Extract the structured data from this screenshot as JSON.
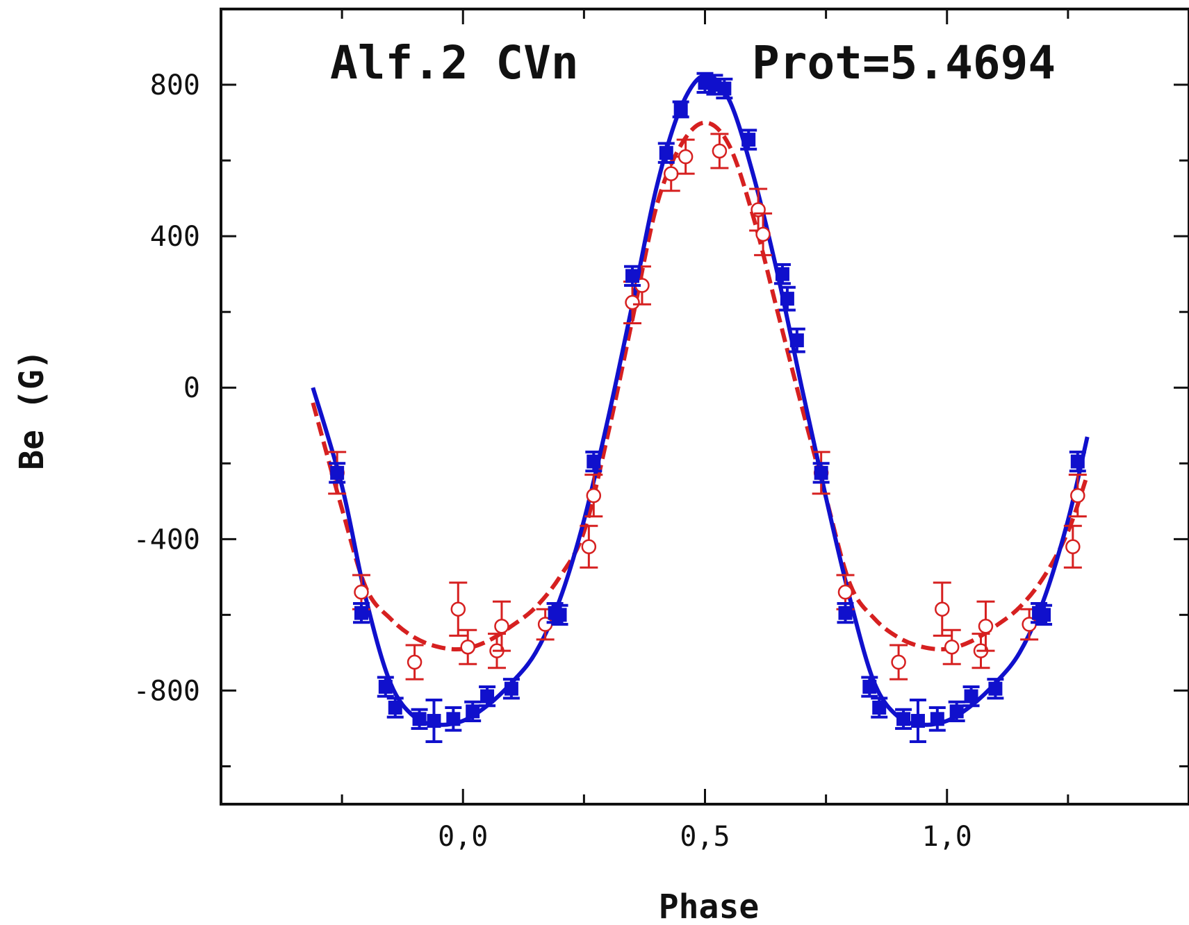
{
  "chart_data": {
    "type": "scatter",
    "title": "",
    "annotations": [
      "Alf.2 CVn",
      "Prot=5.4694"
    ],
    "xlabel": "Phase",
    "ylabel": "Be (G)",
    "xlim": [
      -0.5,
      1.5
    ],
    "ylim": [
      -1100,
      1000
    ],
    "x_ticks": [
      "0,0",
      "0,5",
      "1,0"
    ],
    "x_tick_values": [
      0.0,
      0.5,
      1.0
    ],
    "y_ticks": [
      "800",
      "400",
      "0",
      "-400",
      "-800"
    ],
    "y_tick_values": [
      800,
      400,
      0,
      -400,
      -800
    ],
    "grid": false,
    "colors": {
      "blue": "#1010cc",
      "red": "#d62020",
      "axis": "#111111"
    },
    "series": [
      {
        "style": "filled squares with error bars, solid fit line",
        "color": "#1010cc",
        "points": [
          {
            "x": -0.26,
            "y": -225,
            "err": 25
          },
          {
            "x": -0.21,
            "y": -595,
            "err": 25
          },
          {
            "x": -0.16,
            "y": -790,
            "err": 25
          },
          {
            "x": -0.14,
            "y": -845,
            "err": 25
          },
          {
            "x": -0.09,
            "y": -875,
            "err": 25
          },
          {
            "x": -0.06,
            "y": -880,
            "err": 55
          },
          {
            "x": -0.02,
            "y": -875,
            "err": 30
          },
          {
            "x": 0.02,
            "y": -855,
            "err": 25
          },
          {
            "x": 0.05,
            "y": -815,
            "err": 25
          },
          {
            "x": 0.1,
            "y": -795,
            "err": 25
          },
          {
            "x": 0.19,
            "y": -595,
            "err": 25
          },
          {
            "x": 0.2,
            "y": -600,
            "err": 25
          },
          {
            "x": 0.27,
            "y": -195,
            "err": 25
          },
          {
            "x": 0.35,
            "y": 295,
            "err": 25
          },
          {
            "x": 0.42,
            "y": 620,
            "err": 25
          },
          {
            "x": 0.45,
            "y": 735,
            "err": 20
          },
          {
            "x": 0.5,
            "y": 805,
            "err": 25
          },
          {
            "x": 0.52,
            "y": 800,
            "err": 25
          },
          {
            "x": 0.54,
            "y": 790,
            "err": 25
          },
          {
            "x": 0.59,
            "y": 655,
            "err": 25
          },
          {
            "x": 0.66,
            "y": 300,
            "err": 25
          },
          {
            "x": 0.67,
            "y": 235,
            "err": 30
          },
          {
            "x": 0.69,
            "y": 125,
            "err": 30
          },
          {
            "x": 0.74,
            "y": -225,
            "err": 25
          },
          {
            "x": 0.79,
            "y": -595,
            "err": 25
          },
          {
            "x": 0.84,
            "y": -790,
            "err": 25
          },
          {
            "x": 0.86,
            "y": -845,
            "err": 25
          },
          {
            "x": 0.91,
            "y": -875,
            "err": 25
          },
          {
            "x": 0.94,
            "y": -880,
            "err": 55
          },
          {
            "x": 0.98,
            "y": -875,
            "err": 30
          },
          {
            "x": 1.02,
            "y": -855,
            "err": 25
          },
          {
            "x": 1.05,
            "y": -815,
            "err": 25
          },
          {
            "x": 1.1,
            "y": -795,
            "err": 25
          },
          {
            "x": 1.19,
            "y": -595,
            "err": 25
          },
          {
            "x": 1.2,
            "y": -600,
            "err": 25
          },
          {
            "x": 1.27,
            "y": -195,
            "err": 25
          }
        ],
        "fit": {
          "x": [
            -0.31,
            -0.25,
            -0.2,
            -0.15,
            -0.1,
            -0.05,
            0.0,
            0.05,
            0.1,
            0.15,
            0.2,
            0.25,
            0.3,
            0.35,
            0.4,
            0.45,
            0.5,
            0.55,
            0.6,
            0.65,
            0.7,
            0.75,
            0.8,
            0.85,
            0.9,
            0.95,
            1.0,
            1.05,
            1.1,
            1.15,
            1.2,
            1.25,
            1.29
          ],
          "y": [
            0,
            -260,
            -560,
            -780,
            -870,
            -890,
            -880,
            -840,
            -780,
            -700,
            -560,
            -350,
            -80,
            220,
            530,
            740,
            825,
            760,
            560,
            300,
            0,
            -290,
            -560,
            -780,
            -870,
            -890,
            -880,
            -840,
            -780,
            -700,
            -560,
            -350,
            -130
          ]
        }
      },
      {
        "style": "open circles with error bars, dashed fit line",
        "color": "#d62020",
        "points": [
          {
            "x": -0.26,
            "y": -225,
            "err": 55
          },
          {
            "x": -0.21,
            "y": -540,
            "err": 45
          },
          {
            "x": -0.1,
            "y": -725,
            "err": 45
          },
          {
            "x": -0.01,
            "y": -585,
            "err": 70
          },
          {
            "x": 0.01,
            "y": -685,
            "err": 45
          },
          {
            "x": 0.07,
            "y": -695,
            "err": 45
          },
          {
            "x": 0.08,
            "y": -630,
            "err": 65
          },
          {
            "x": 0.17,
            "y": -625,
            "err": 40
          },
          {
            "x": 0.26,
            "y": -420,
            "err": 55
          },
          {
            "x": 0.27,
            "y": -285,
            "err": 55
          },
          {
            "x": 0.35,
            "y": 225,
            "err": 55
          },
          {
            "x": 0.37,
            "y": 270,
            "err": 50
          },
          {
            "x": 0.43,
            "y": 565,
            "err": 45
          },
          {
            "x": 0.46,
            "y": 610,
            "err": 45
          },
          {
            "x": 0.53,
            "y": 625,
            "err": 45
          },
          {
            "x": 0.61,
            "y": 470,
            "err": 55
          },
          {
            "x": 0.62,
            "y": 405,
            "err": 55
          },
          {
            "x": 0.74,
            "y": -225,
            "err": 55
          },
          {
            "x": 0.79,
            "y": -540,
            "err": 45
          },
          {
            "x": 0.9,
            "y": -725,
            "err": 45
          },
          {
            "x": 0.99,
            "y": -585,
            "err": 70
          },
          {
            "x": 1.01,
            "y": -685,
            "err": 45
          },
          {
            "x": 1.07,
            "y": -695,
            "err": 45
          },
          {
            "x": 1.08,
            "y": -630,
            "err": 65
          },
          {
            "x": 1.17,
            "y": -625,
            "err": 40
          },
          {
            "x": 1.26,
            "y": -420,
            "err": 55
          },
          {
            "x": 1.27,
            "y": -285,
            "err": 55
          }
        ],
        "fit": {
          "x": [
            -0.31,
            -0.25,
            -0.2,
            -0.15,
            -0.1,
            -0.05,
            0.0,
            0.05,
            0.1,
            0.15,
            0.2,
            0.25,
            0.3,
            0.35,
            0.4,
            0.45,
            0.5,
            0.55,
            0.6,
            0.65,
            0.7,
            0.75,
            0.8,
            0.85,
            0.9,
            0.95,
            1.0,
            1.05,
            1.1,
            1.15,
            1.2,
            1.25,
            1.29
          ],
          "y": [
            -40,
            -320,
            -530,
            -610,
            -660,
            -685,
            -690,
            -670,
            -630,
            -580,
            -500,
            -380,
            -120,
            180,
            480,
            640,
            700,
            640,
            450,
            200,
            -50,
            -290,
            -520,
            -610,
            -660,
            -685,
            -690,
            -670,
            -630,
            -580,
            -500,
            -380,
            -230
          ]
        }
      }
    ]
  }
}
